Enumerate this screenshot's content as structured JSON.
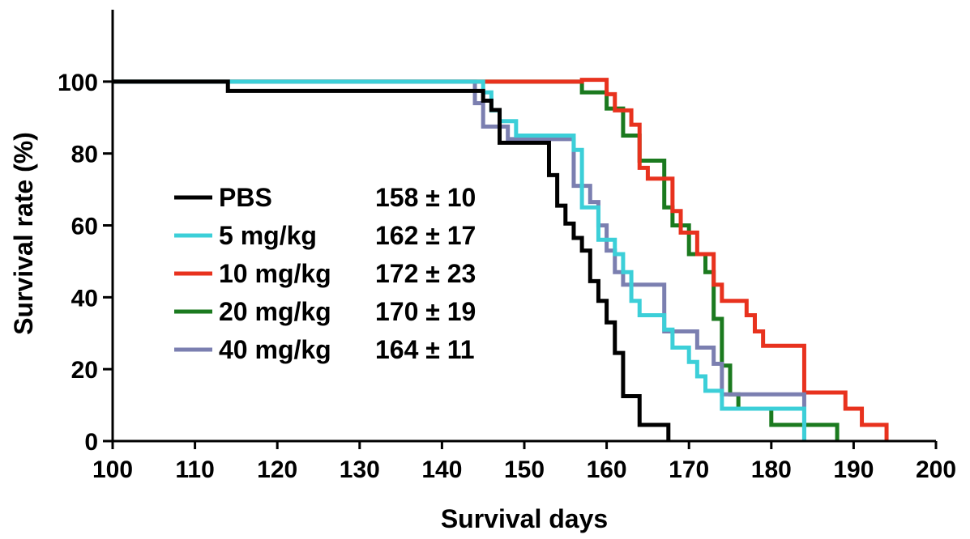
{
  "chart_data": {
    "type": "line",
    "title": "",
    "xlabel": "Survival days",
    "ylabel": "Survival rate (%)",
    "xlim": [
      100,
      200
    ],
    "ylim": [
      0,
      120
    ],
    "xticks": [
      100,
      110,
      120,
      130,
      140,
      150,
      160,
      170,
      180,
      190,
      200
    ],
    "xtick_labels": [
      "100",
      "110",
      "120",
      "130",
      "140",
      "150",
      "160",
      "170",
      "180",
      "190",
      "200"
    ],
    "yticks": [
      0,
      20,
      40,
      60,
      80,
      100
    ],
    "ytick_labels": [
      "0",
      "20",
      "40",
      "60",
      "80",
      "100"
    ],
    "grid": false,
    "legend_position": "center-left",
    "series": [
      {
        "name": "PBS",
        "stat": "158 ± 10",
        "color": "#000000",
        "points": [
          [
            100,
            100
          ],
          [
            114,
            100
          ],
          [
            114,
            97.4
          ],
          [
            145,
            97.4
          ],
          [
            145,
            94.7
          ],
          [
            146,
            94.7
          ],
          [
            146,
            92.1
          ],
          [
            147,
            92.1
          ],
          [
            147,
            83
          ],
          [
            153,
            83
          ],
          [
            153,
            74
          ],
          [
            154,
            74
          ],
          [
            154,
            65.5
          ],
          [
            155,
            65.5
          ],
          [
            155,
            60.5
          ],
          [
            156,
            60.5
          ],
          [
            156,
            56.5
          ],
          [
            157,
            56.5
          ],
          [
            157,
            53
          ],
          [
            158,
            53
          ],
          [
            158,
            44.5
          ],
          [
            159,
            44.5
          ],
          [
            159,
            39
          ],
          [
            160,
            39
          ],
          [
            160,
            33
          ],
          [
            161,
            33
          ],
          [
            161,
            24.5
          ],
          [
            162,
            24.5
          ],
          [
            162,
            12.5
          ],
          [
            164,
            12.5
          ],
          [
            164,
            4.5
          ],
          [
            167.5,
            4.5
          ],
          [
            167.5,
            0
          ]
        ]
      },
      {
        "name": "5 mg/kg",
        "stat": "162 ± 17",
        "color": "#3ccfd8",
        "points": [
          [
            100,
            100
          ],
          [
            145,
            100
          ],
          [
            145,
            97
          ],
          [
            146,
            97
          ],
          [
            146,
            92
          ],
          [
            147,
            92
          ],
          [
            147,
            89
          ],
          [
            149,
            89
          ],
          [
            149,
            85
          ],
          [
            156,
            85
          ],
          [
            156,
            81
          ],
          [
            157,
            81
          ],
          [
            157,
            65
          ],
          [
            159,
            65
          ],
          [
            159,
            56
          ],
          [
            161,
            56
          ],
          [
            161,
            52
          ],
          [
            162,
            52
          ],
          [
            162,
            47
          ],
          [
            163,
            47
          ],
          [
            163,
            39
          ],
          [
            164,
            39
          ],
          [
            164,
            35
          ],
          [
            167,
            35
          ],
          [
            167,
            31
          ],
          [
            168,
            31
          ],
          [
            168,
            26
          ],
          [
            170,
            26
          ],
          [
            170,
            22
          ],
          [
            171,
            22
          ],
          [
            171,
            18
          ],
          [
            172,
            18
          ],
          [
            172,
            14
          ],
          [
            174,
            14
          ],
          [
            174,
            9
          ],
          [
            184,
            9
          ],
          [
            184,
            0
          ]
        ]
      },
      {
        "name": "10 mg/kg",
        "stat": "172 ± 23",
        "color": "#e8321e",
        "points": [
          [
            100,
            100
          ],
          [
            157,
            100
          ],
          [
            157,
            100.5
          ],
          [
            160,
            100.5
          ],
          [
            160,
            96.5
          ],
          [
            161,
            96.5
          ],
          [
            161,
            92
          ],
          [
            163,
            92
          ],
          [
            163,
            88
          ],
          [
            164,
            88
          ],
          [
            164,
            76
          ],
          [
            165,
            76
          ],
          [
            165,
            73
          ],
          [
            168,
            73
          ],
          [
            168,
            64
          ],
          [
            169,
            64
          ],
          [
            169,
            58
          ],
          [
            171,
            58
          ],
          [
            171,
            52
          ],
          [
            173,
            52
          ],
          [
            173,
            43.5
          ],
          [
            174,
            43.5
          ],
          [
            174,
            39
          ],
          [
            177,
            39
          ],
          [
            177,
            35
          ],
          [
            178,
            35
          ],
          [
            178,
            30.5
          ],
          [
            179,
            30.5
          ],
          [
            179,
            26.5
          ],
          [
            184,
            26.5
          ],
          [
            184,
            13.5
          ],
          [
            189,
            13.5
          ],
          [
            189,
            9
          ],
          [
            191,
            9
          ],
          [
            191,
            4.5
          ],
          [
            194,
            4.5
          ],
          [
            194,
            0
          ]
        ]
      },
      {
        "name": "20 mg/kg",
        "stat": "170 ± 19",
        "color": "#1b7a1f",
        "points": [
          [
            100,
            100
          ],
          [
            157,
            100
          ],
          [
            157,
            97
          ],
          [
            160,
            97
          ],
          [
            160,
            92.5
          ],
          [
            162,
            92.5
          ],
          [
            162,
            85
          ],
          [
            164,
            85
          ],
          [
            164,
            78
          ],
          [
            167,
            78
          ],
          [
            167,
            65
          ],
          [
            168,
            65
          ],
          [
            168,
            60
          ],
          [
            170,
            60
          ],
          [
            170,
            52
          ],
          [
            172,
            52
          ],
          [
            172,
            47
          ],
          [
            173,
            47
          ],
          [
            173,
            34
          ],
          [
            174,
            34
          ],
          [
            174,
            21
          ],
          [
            175,
            21
          ],
          [
            175,
            13
          ],
          [
            176,
            13
          ],
          [
            176,
            9
          ],
          [
            180,
            9
          ],
          [
            180,
            4.5
          ],
          [
            188,
            4.5
          ],
          [
            188,
            0
          ]
        ]
      },
      {
        "name": "40 mg/kg",
        "stat": "164 ± 11",
        "color": "#7b7fb0",
        "points": [
          [
            100,
            100
          ],
          [
            144,
            100
          ],
          [
            144,
            94
          ],
          [
            145,
            94
          ],
          [
            145,
            87.5
          ],
          [
            148,
            87.5
          ],
          [
            148,
            84
          ],
          [
            156,
            84
          ],
          [
            156,
            71
          ],
          [
            158,
            71
          ],
          [
            158,
            66.5
          ],
          [
            159,
            66.5
          ],
          [
            159,
            60
          ],
          [
            160,
            60
          ],
          [
            160,
            53
          ],
          [
            161,
            53
          ],
          [
            161,
            47
          ],
          [
            162,
            47
          ],
          [
            162,
            43.5
          ],
          [
            167,
            43.5
          ],
          [
            167,
            30.5
          ],
          [
            171,
            30.5
          ],
          [
            171,
            26
          ],
          [
            173,
            26
          ],
          [
            173,
            21.5
          ],
          [
            174,
            21.5
          ],
          [
            174,
            13
          ],
          [
            184,
            13
          ],
          [
            184,
            0
          ]
        ]
      }
    ]
  }
}
